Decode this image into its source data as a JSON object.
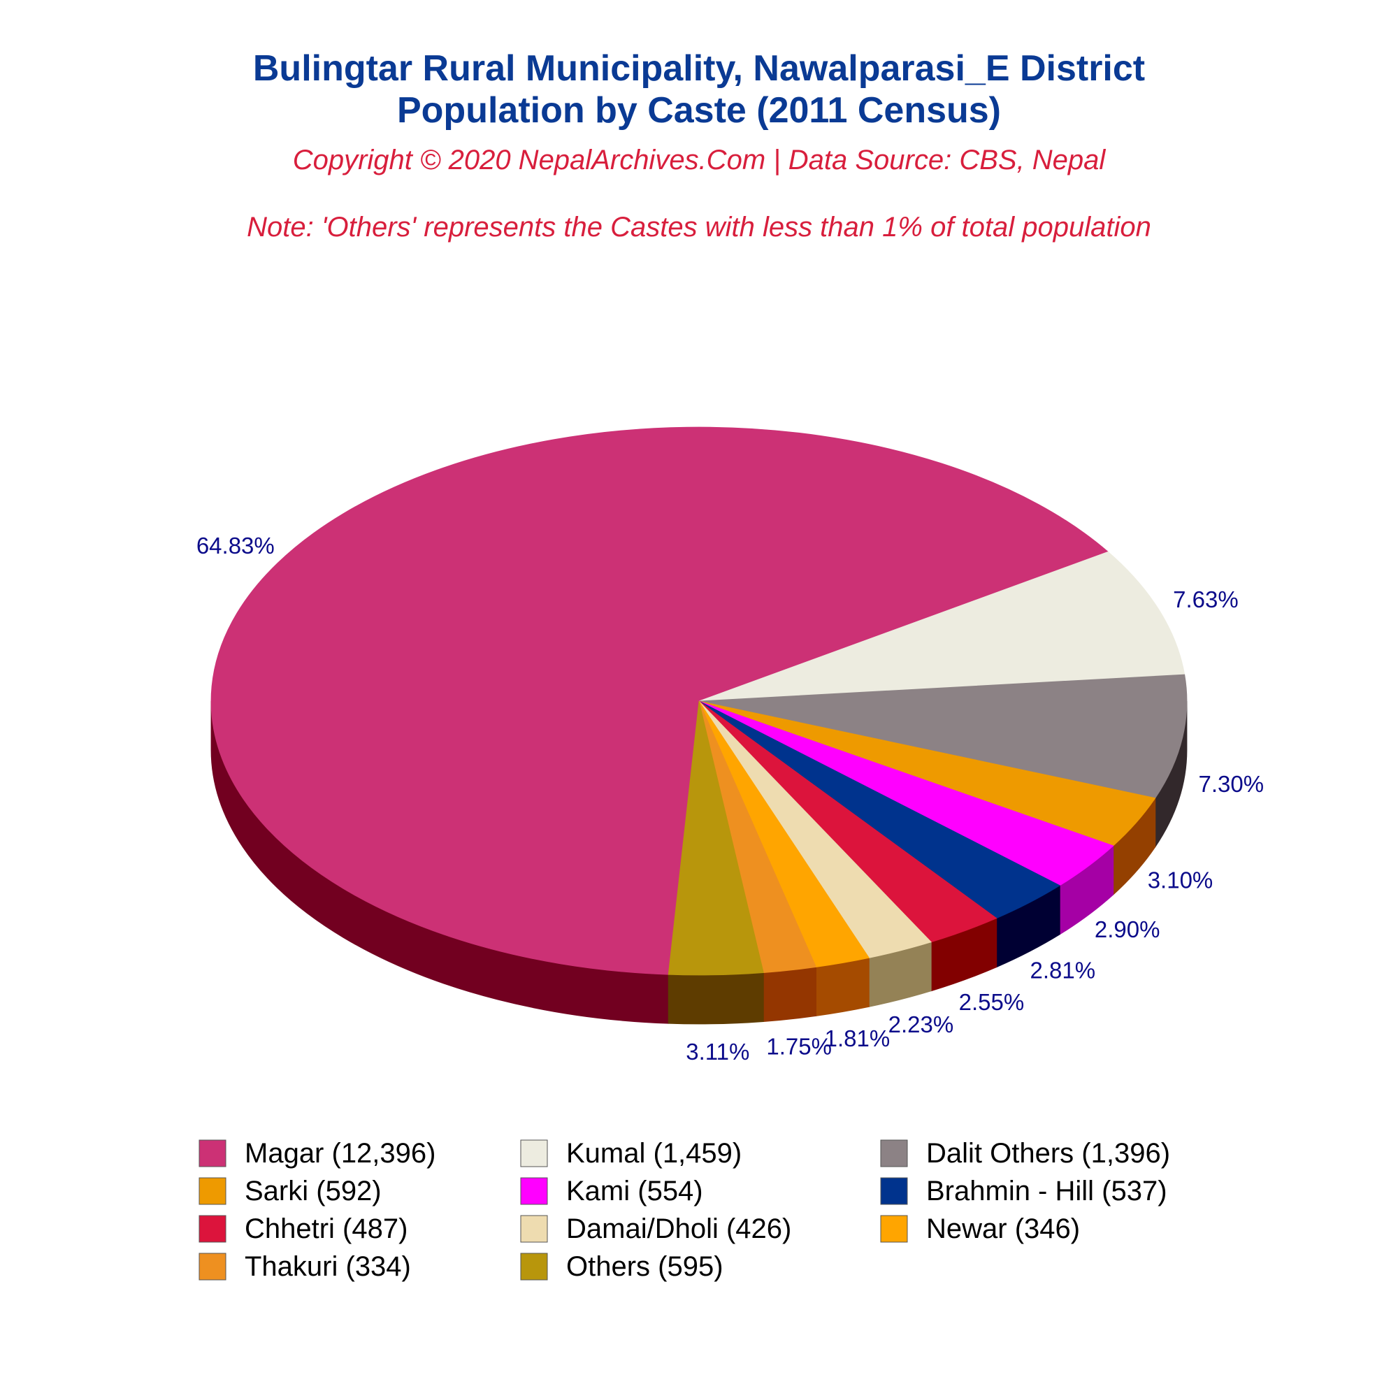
{
  "chart_data": {
    "type": "pie",
    "title": "Bulingtar Rural Municipality, Nawalparasi_E District",
    "subtitle": "Population by Caste (2011 Census)",
    "copyright": "Copyright © 2020 NepalArchives.Com | Data Source: CBS, Nepal",
    "note": "Note: 'Others' represents the Castes with less than 1% of total population",
    "slices": [
      {
        "label": "Magar",
        "legend": "Magar (12,396)",
        "value": 12396,
        "percent": "64.83%",
        "color": "#cc3175",
        "side_color": "#720020"
      },
      {
        "label": "Kumal",
        "legend": "Kumal (1,459)",
        "value": 1459,
        "percent": "7.63%",
        "color": "#edece0",
        "side_color": "#949585"
      },
      {
        "label": "Dalit Others",
        "legend": "Dalit Others (1,396)",
        "value": 1396,
        "percent": "7.30%",
        "color": "#8c8285",
        "side_color": "#32282b"
      },
      {
        "label": "Sarki",
        "legend": "Sarki (592)",
        "value": 592,
        "percent": "3.10%",
        "color": "#ee9a00",
        "side_color": "#944000"
      },
      {
        "label": "Kami",
        "legend": "Kami (554)",
        "value": 554,
        "percent": "2.90%",
        "color": "#ff00ff",
        "side_color": "#a500a5"
      },
      {
        "label": "Brahmin - Hill",
        "legend": "Brahmin - Hill (537)",
        "value": 537,
        "percent": "2.81%",
        "color": "#00338d",
        "side_color": "#000033"
      },
      {
        "label": "Chhetri",
        "legend": "Chhetri (487)",
        "value": 487,
        "percent": "2.55%",
        "color": "#dc143c",
        "side_color": "#820000"
      },
      {
        "label": "Damai/Dholi",
        "legend": "Damai/Dholi (426)",
        "value": 426,
        "percent": "2.23%",
        "color": "#eedcb0",
        "side_color": "#948256"
      },
      {
        "label": "Newar",
        "legend": "Newar (346)",
        "value": 346,
        "percent": "1.81%",
        "color": "#ffa500",
        "side_color": "#a54b00"
      },
      {
        "label": "Thakuri",
        "legend": "Thakuri (334)",
        "value": 334,
        "percent": "1.75%",
        "color": "#ee9020",
        "side_color": "#943600"
      },
      {
        "label": "Others",
        "legend": "Others (595)",
        "value": 595,
        "percent": "3.11%",
        "color": "#b8960c",
        "side_color": "#5e3c00"
      }
    ],
    "legend_placement": "bottom"
  }
}
